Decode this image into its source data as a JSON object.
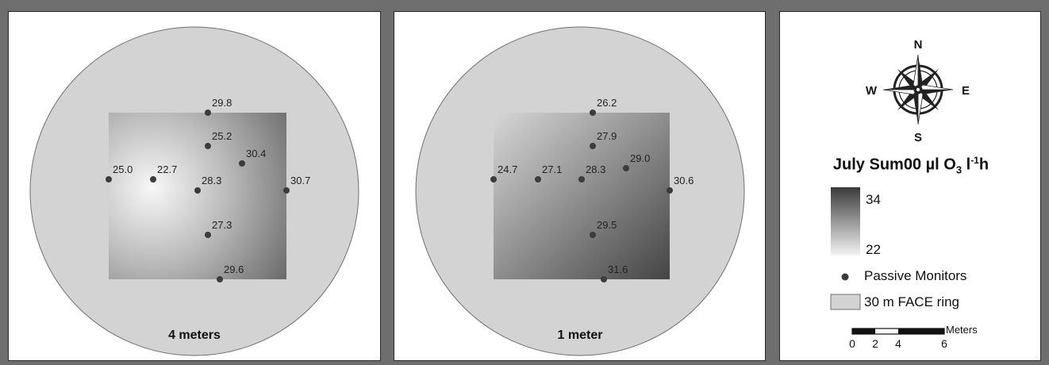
{
  "panels": [
    {
      "caption": "4 meters",
      "monitors": [
        {
          "label": "29.8"
        },
        {
          "label": "25.2"
        },
        {
          "label": "30.4"
        },
        {
          "label": "25.0"
        },
        {
          "label": "22.7"
        },
        {
          "label": "28.3"
        },
        {
          "label": "30.7"
        },
        {
          "label": "27.3"
        },
        {
          "label": "29.6"
        }
      ]
    },
    {
      "caption": "1 meter",
      "monitors": [
        {
          "label": "26.2"
        },
        {
          "label": "27.9"
        },
        {
          "label": "29.0"
        },
        {
          "label": "24.7"
        },
        {
          "label": "27.1"
        },
        {
          "label": "28.3"
        },
        {
          "label": "30.6"
        },
        {
          "label": "29.5"
        },
        {
          "label": "31.6"
        }
      ]
    }
  ],
  "legend": {
    "compass": {
      "n": "N",
      "s": "S",
      "e": "E",
      "w": "W"
    },
    "title_prefix": "July Sum00 µl O",
    "title_subscript": "3",
    "title_mid": " l",
    "title_superscript": "-1",
    "title_suffix": "h",
    "scale_max": "34",
    "scale_min": "22",
    "monitor_label": "Passive Monitors",
    "ring_label": "30 m FACE ring",
    "scalebar_unit": "Meters",
    "scalebar_ticks": [
      "0",
      "2",
      "4",
      "6"
    ]
  },
  "colors": {
    "ring_fill": "#d3d3d3",
    "ramp_high": "#3a3a3a",
    "ramp_low": "#f4f4f4",
    "monitor": "#3c3c3c"
  }
}
